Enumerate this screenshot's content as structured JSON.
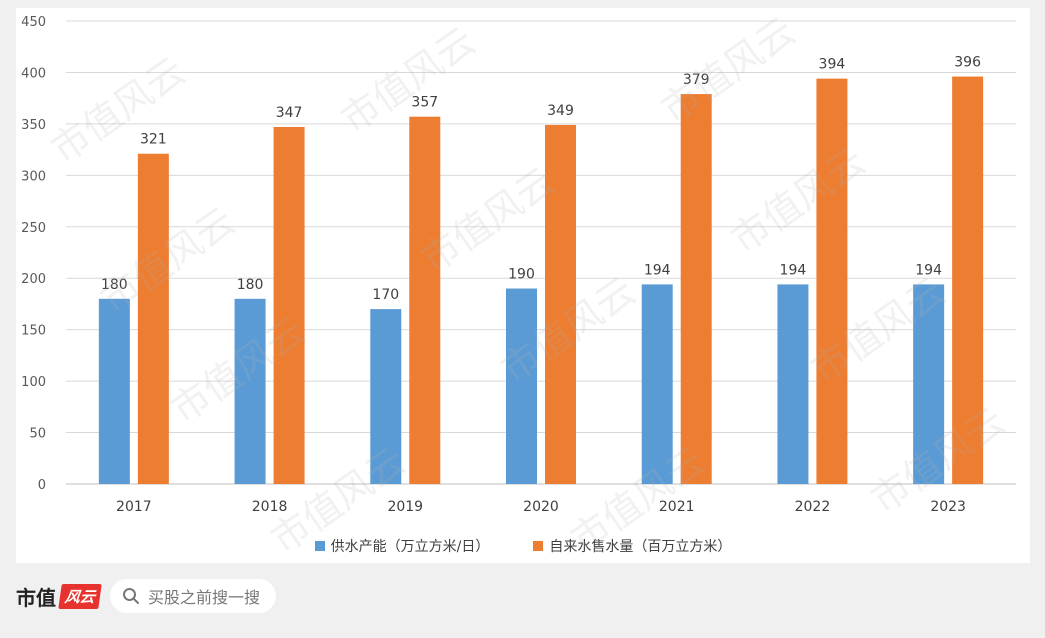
{
  "chart_data": {
    "type": "bar",
    "title": "",
    "xlabel": "",
    "ylabel": "",
    "ylim": [
      0,
      450
    ],
    "yticks": [
      0,
      50,
      100,
      150,
      200,
      250,
      300,
      350,
      400,
      450
    ],
    "categories": [
      "2017",
      "2018",
      "2019",
      "2020",
      "2021",
      "2022",
      "2023"
    ],
    "series": [
      {
        "name": "供水产能（万立方米/日）",
        "color": "#5b9bd5",
        "values": [
          180,
          180,
          170,
          190,
          194,
          194,
          194
        ]
      },
      {
        "name": "自来水售水量（百万立方米）",
        "color": "#ed7d31",
        "values": [
          321,
          347,
          357,
          349,
          379,
          394,
          396
        ]
      }
    ],
    "grid": true,
    "legend": "bottom"
  },
  "footer": {
    "brand": "市值",
    "brand_seal": "风云",
    "search_placeholder": "买股之前搜一搜",
    "search_icon": "search-icon"
  },
  "watermark": "市值风云"
}
